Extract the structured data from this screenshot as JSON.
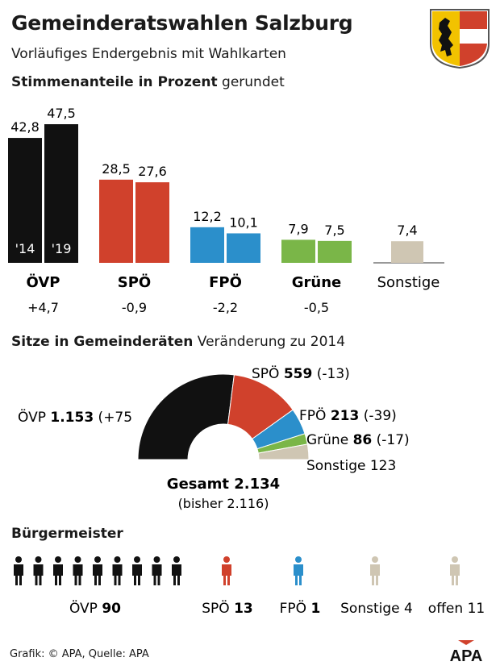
{
  "header": {
    "title": "Gemeinderatswahlen Salzburg",
    "subtitle": "Vorläufiges Endergebnis mit Wahlkarten"
  },
  "sections": {
    "votes_bold": "Stimmenanteile in Prozent",
    "votes_rest": " gerundet",
    "seats_bold": "Sitze in Gemeinderäten",
    "seats_rest": " Veränderung zu 2014",
    "mayors": "Bürgermeister"
  },
  "colors": {
    "OVP": "#111111",
    "SPO": "#d0412c",
    "FPO": "#2b8fcb",
    "Grune": "#7ab648",
    "Sonstige": "#cfc6b3",
    "axis": "#333333"
  },
  "chart_data": [
    {
      "type": "bar",
      "title": "Stimmenanteile in Prozent",
      "categories": [
        "ÖVP",
        "SPÖ",
        "FPÖ",
        "Grüne",
        "Sonstige"
      ],
      "category_keys": [
        "OVP",
        "SPO",
        "FPO",
        "Grune",
        "Sonstige"
      ],
      "series": [
        {
          "name": "'14",
          "values": [
            42.8,
            28.5,
            12.2,
            7.9,
            null
          ]
        },
        {
          "name": "'19",
          "values": [
            47.5,
            27.6,
            10.1,
            7.5,
            7.4
          ]
        }
      ],
      "value_labels": {
        "s0": [
          "42,8",
          "28,5",
          "12,2",
          "7,9",
          ""
        ],
        "s1": [
          "47,5",
          "27,6",
          "10,1",
          "7,5",
          "7,4"
        ]
      },
      "changes": [
        "+4,7",
        "-0,9",
        "-2,2",
        "-0,5",
        ""
      ],
      "ylim": [
        0,
        50
      ]
    },
    {
      "type": "pie",
      "title": "Sitze in Gemeinderäten",
      "labels": [
        "ÖVP",
        "SPÖ",
        "FPÖ",
        "Grüne",
        "Sonstige"
      ],
      "keys": [
        "OVP",
        "SPO",
        "FPO",
        "Grune",
        "Sonstige"
      ],
      "values": [
        1153,
        559,
        213,
        86,
        123
      ],
      "value_labels": [
        "1.153",
        "559",
        "213",
        "86",
        "123"
      ],
      "change_labels": [
        "(+75",
        "(-13)",
        "(-39)",
        "(-17)",
        ""
      ],
      "total_label": "Gesamt 2.134",
      "previous_label": "(bisher 2.116)"
    },
    {
      "type": "bar",
      "title": "Bürgermeister",
      "categories": [
        "ÖVP",
        "SPÖ",
        "FPÖ",
        "Sonstige",
        "offen"
      ],
      "keys": [
        "OVP",
        "SPO",
        "FPO",
        "Sonstige",
        "Sonstige"
      ],
      "values": [
        90,
        13,
        1,
        4,
        11
      ],
      "value_labels": [
        "90",
        "13",
        "1",
        "4",
        "11"
      ],
      "bold_values": [
        true,
        true,
        true,
        false,
        false
      ]
    }
  ],
  "footer": {
    "source": "Grafik: © APA, Quelle: APA",
    "logo": "APA"
  }
}
